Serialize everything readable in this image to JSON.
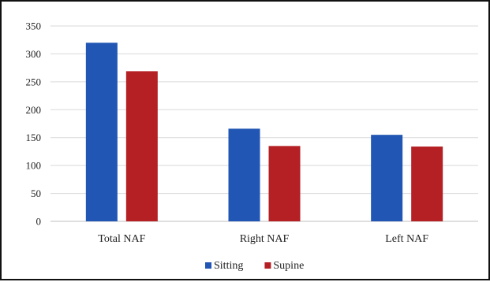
{
  "chart_data": {
    "type": "bar",
    "categories": [
      "Total NAF",
      "Right NAF",
      "Left NAF"
    ],
    "series": [
      {
        "name": "Sitting",
        "values": [
          320,
          166,
          155
        ]
      },
      {
        "name": "Supine",
        "values": [
          269,
          135,
          134
        ]
      }
    ],
    "ylim": [
      0,
      350
    ],
    "yticks": [
      0,
      50,
      100,
      150,
      200,
      250,
      300,
      350
    ],
    "grid": true,
    "legend_position": "bottom",
    "colors": {
      "Sitting": "#2156b4",
      "Supine": "#b42024",
      "grid": "#d9d9d9",
      "axis": "#bfbfbf"
    }
  }
}
